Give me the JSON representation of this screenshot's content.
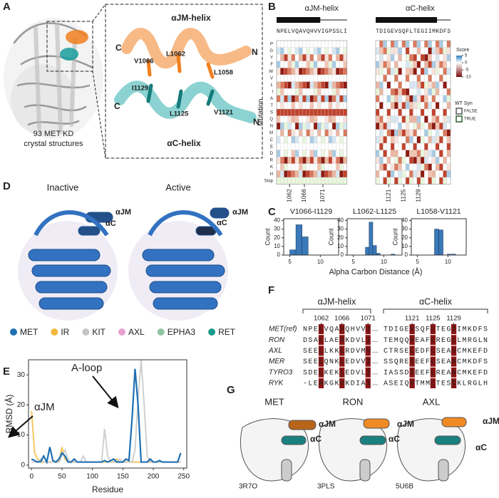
{
  "A": {
    "label": "A",
    "caption_lines": [
      "93 MET KD",
      "crystal structures"
    ],
    "inset": {
      "jm": "αJM-helix",
      "c": "αC-helix",
      "residues": [
        "V1066",
        "L1062",
        "L1058",
        "I1129",
        "L1125",
        "V1121"
      ],
      "termini": [
        "C",
        "N",
        "C",
        "N"
      ]
    }
  },
  "B": {
    "label": "B",
    "jm": {
      "title": "αJM-helix",
      "sequence": "NPELVQAVQHVVIGPSSLI",
      "xticks": [
        1062,
        1066,
        1071
      ]
    },
    "c": {
      "title": "αC-helix",
      "sequence": "TDIGEVSQFLTEGIIMKDFS",
      "xticks": [
        1121,
        1125,
        1129
      ]
    },
    "ylabel": "Mutation",
    "mutations": [
      "P",
      "G",
      "Y",
      "F",
      "W",
      "V",
      "L",
      "I",
      "A",
      "T",
      "S",
      "Q",
      "N",
      "M",
      "C",
      "E",
      "D",
      "R",
      "K",
      "H",
      "Stop"
    ],
    "legend": {
      "title": "Score",
      "ticks": [
        5,
        0,
        -5,
        -10
      ],
      "syn_title": "WT Syn",
      "syn": [
        "FALSE",
        "TRUE"
      ]
    }
  },
  "C": {
    "label": "C",
    "xlabel": "Alpha Carbon Distance (Å)",
    "ylabel": "Count",
    "charts": [
      {
        "type": "histogram",
        "title": "V1066-I1129",
        "bins": [
          5,
          6,
          7,
          8
        ],
        "counts": [
          6,
          35,
          21
        ],
        "xlim": [
          4,
          13
        ],
        "xticks": [
          5,
          10
        ],
        "ylim": [
          0,
          42
        ],
        "yticks": [
          0,
          10,
          20,
          30,
          40
        ],
        "color": "#3a78b8"
      },
      {
        "type": "histogram",
        "title": "L1062-L1125",
        "bins": [
          7,
          7.6,
          8.2,
          8.8,
          9.4,
          10,
          10.6,
          11.2,
          11.8
        ],
        "counts": [
          9,
          38,
          11,
          2,
          0,
          0,
          0,
          1
        ],
        "xlim": [
          4,
          13
        ],
        "xticks": [
          5,
          10
        ],
        "ylim": [
          0,
          42
        ],
        "yticks": [
          0,
          10,
          20,
          30,
          40
        ],
        "color": "#3a78b8"
      },
      {
        "type": "histogram",
        "title": "L1058-V1121",
        "bins": [
          7.8,
          8.5,
          9.2,
          9.9,
          10.6,
          11.3
        ],
        "counts": [
          30,
          29,
          0,
          1,
          1
        ],
        "xlim": [
          4,
          13
        ],
        "xticks": [
          5,
          10
        ],
        "ylim": [
          0,
          42
        ],
        "yticks": [
          0,
          10,
          20,
          30,
          40
        ],
        "color": "#3a78b8"
      }
    ]
  },
  "D": {
    "label": "D",
    "titles": [
      "Inactive",
      "Active"
    ],
    "helix_labels": [
      "αJM",
      "αC"
    ],
    "legend": [
      {
        "name": "MET",
        "color": "#1f6fb4"
      },
      {
        "name": "IR",
        "color": "#f0b93c"
      },
      {
        "name": "KIT",
        "color": "#c4c4c4"
      },
      {
        "name": "AXL",
        "color": "#e8a0d0"
      },
      {
        "name": "EPHA3",
        "color": "#8fc4a0"
      },
      {
        "name": "RET",
        "color": "#1a9c8c"
      }
    ]
  },
  "E": {
    "label": "E",
    "chart": {
      "type": "line",
      "xlabel": "Residue",
      "ylabel": "RMSD (Å)",
      "x": [
        0,
        5,
        10,
        15,
        20,
        25,
        30,
        35,
        40,
        45,
        50,
        55,
        60,
        65,
        70,
        75,
        80,
        85,
        90,
        95,
        100,
        105,
        110,
        115,
        120,
        125,
        130,
        135,
        140,
        145,
        150,
        155,
        160,
        165,
        170,
        175,
        180,
        185,
        190,
        195,
        200,
        205,
        210,
        215,
        220,
        225,
        230,
        235,
        240,
        245
      ],
      "series": [
        {
          "color": "#f0b93c",
          "values": [
            18,
            4,
            2,
            1,
            1,
            1,
            1,
            1,
            1,
            1,
            6,
            2,
            1,
            1,
            1,
            1,
            1,
            1,
            1,
            1,
            1,
            1,
            1,
            1,
            1,
            1,
            1,
            1,
            2,
            1,
            1,
            1,
            1,
            1,
            1,
            1,
            1,
            1,
            1,
            1,
            1,
            1,
            1,
            1,
            1,
            1,
            1,
            1,
            1,
            1
          ]
        },
        {
          "color": "#c4c4c4",
          "values": [
            1,
            1,
            1,
            2,
            1,
            1,
            1,
            1,
            1,
            1,
            3,
            5,
            2,
            1,
            1,
            1,
            1,
            3,
            1,
            1,
            1,
            1,
            1,
            1,
            12,
            3,
            1,
            1,
            1,
            2,
            1,
            1,
            1,
            1,
            5,
            22,
            35,
            20,
            3,
            1,
            1,
            1,
            1,
            1,
            1,
            1,
            1,
            1,
            1,
            1
          ]
        },
        {
          "color": "#1f6fb4",
          "values": [
            2,
            1.5,
            1,
            1.2,
            3,
            1,
            6,
            1.5,
            1,
            2,
            4,
            3,
            1,
            1,
            2,
            1,
            1,
            1,
            1,
            1,
            1,
            1,
            1,
            1,
            1.5,
            1,
            1.5,
            2,
            1,
            1,
            1,
            2,
            1.5,
            15,
            32,
            20,
            1,
            1,
            1,
            2,
            1,
            1,
            1.5,
            1,
            1,
            1,
            1,
            1,
            1,
            4
          ]
        }
      ],
      "xlim": [
        -5,
        255
      ],
      "ylim": [
        -1,
        35
      ],
      "xticks": [
        0,
        50,
        100,
        150,
        200,
        250
      ],
      "yticks": [
        0,
        10,
        20,
        30
      ],
      "annotations": [
        "αJM",
        "A-loop"
      ]
    }
  },
  "F": {
    "label": "F",
    "headers": [
      "αJM-helix",
      "αC-helix"
    ],
    "numbers": [
      1062,
      1066,
      1071,
      1121,
      1125,
      1129
    ],
    "gap": "...",
    "rows": [
      {
        "name": "MET(ref)",
        "jm": "NPELVQAVQHVVI",
        "c": "TDIGEVSQFLTEGIIMKDFS"
      },
      {
        "name": "RON",
        "jm": "DSALLAEVKDVLI",
        "c": "TEMQQVEAFLREGLLMRGLN"
      },
      {
        "name": "AXL",
        "jm": "SEELLKKLRDVMV",
        "c": "CTRSELEDFLSEAVCMKEFD"
      },
      {
        "name": "MER",
        "jm": "SEELQNKLEDVVI",
        "c": "SSQREIEEFLSEAACMKDFS"
      },
      {
        "name": "TYRO3",
        "jm": "SDELKEKLEDVLI",
        "c": "IASSDIEEFLREAACMKEFD"
      },
      {
        "name": "RYK",
        "jm": "-LEAKGKVKDIAI",
        "c": "ASEIQVTMMLTESCKLRGLH"
      }
    ],
    "highlight_jm": [
      3,
      7,
      12
    ],
    "highlight_c": [
      5,
      9,
      13
    ]
  },
  "G": {
    "label": "G",
    "helix_labels": [
      "αJM",
      "αC"
    ],
    "structures": [
      {
        "name": "MET",
        "pdb": "3R7O"
      },
      {
        "name": "RON",
        "pdb": "3PLS"
      },
      {
        "name": "AXL",
        "pdb": "5U6B"
      }
    ]
  }
}
